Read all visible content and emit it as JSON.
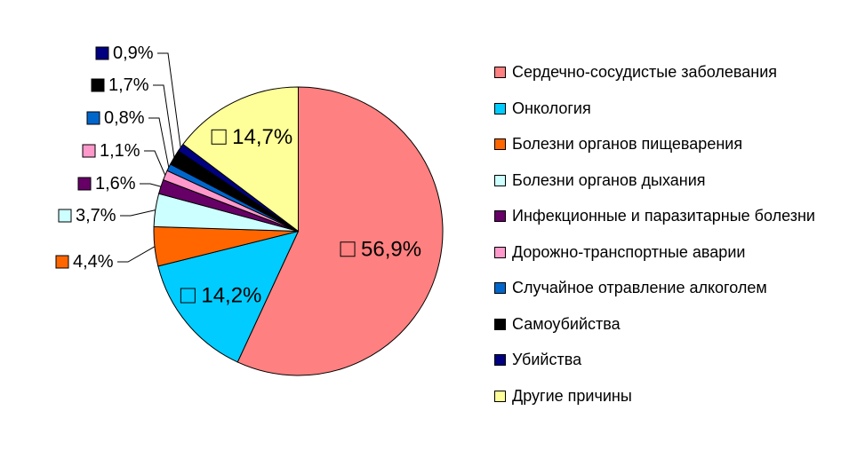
{
  "chart_data": {
    "type": "pie",
    "title": "",
    "legend_position": "right",
    "start_angle_deg": 0,
    "direction": "clockwise",
    "background_color": "#ffffff",
    "slice_border_color": "#000000",
    "slices": [
      {
        "label": "Сердечно-сосудистые заболевания",
        "value": 56.9,
        "percent_label": "56,9%",
        "color": "#FF8080"
      },
      {
        "label": "Онкология",
        "value": 14.2,
        "percent_label": "14,2%",
        "color": "#00CCFF"
      },
      {
        "label": "Болезни органов пищеварения",
        "value": 4.4,
        "percent_label": "4,4%",
        "color": "#FF6600"
      },
      {
        "label": "Болезни органов дыхания",
        "value": 3.7,
        "percent_label": "3,7%",
        "color": "#CCFFFF"
      },
      {
        "label": "Инфекционные и паразитарные болезни",
        "value": 1.6,
        "percent_label": "1,6%",
        "color": "#660066"
      },
      {
        "label": "Дорожно-транспортные аварии",
        "value": 1.1,
        "percent_label": "1,1%",
        "color": "#FF99CC"
      },
      {
        "label": "Случайное отравление алкоголем",
        "value": 0.8,
        "percent_label": "0,8%",
        "color": "#0066CC"
      },
      {
        "label": "Самоубийства",
        "value": 1.7,
        "percent_label": "1,7%",
        "color": "#000000"
      },
      {
        "label": "Убийства",
        "value": 0.9,
        "percent_label": "0,9%",
        "color": "#000080"
      },
      {
        "label": "Другие причины",
        "value": 14.7,
        "percent_label": "14,7%",
        "color": "#FFFF99"
      }
    ]
  }
}
